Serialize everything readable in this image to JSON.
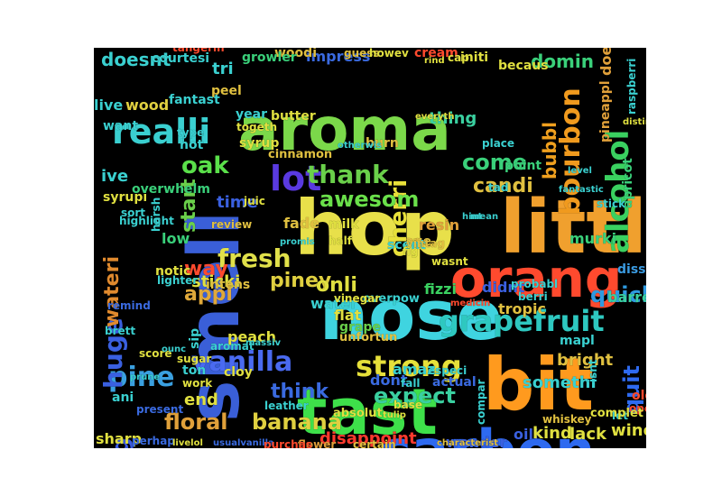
{
  "image": {
    "kind": "word cloud",
    "background": "#000000",
    "page_background": "#ffffff"
  },
  "words": [
    {
      "text": "aroma",
      "color": "#7bd84a"
    },
    {
      "text": "hop",
      "color": "#e8e04a"
    },
    {
      "text": "littl",
      "color": "#f0a02e"
    },
    {
      "text": "nose",
      "color": "#3fd4e0"
    },
    {
      "text": "smell",
      "color": "#3a5fd8"
    },
    {
      "text": "tast",
      "color": "#3ee04a"
    },
    {
      "text": "orang",
      "color": "#ff4a2e"
    },
    {
      "text": "bit",
      "color": "#ff9a1e"
    },
    {
      "text": "carbon",
      "color": "#2e6af0"
    },
    {
      "text": "grapefruit",
      "color": "#2ec8c0"
    },
    {
      "text": "realli",
      "color": "#3acfd0"
    },
    {
      "text": "alcohol",
      "color": "#3ad060"
    },
    {
      "text": "bourbon",
      "color": "#f09a1e"
    },
    {
      "text": "vanilla",
      "color": "#4a6af0"
    },
    {
      "text": "strong",
      "color": "#e6e03a"
    },
    {
      "text": "lot",
      "color": "#5a3ae0"
    },
    {
      "text": "thank",
      "color": "#6ad04a"
    },
    {
      "text": "cherri",
      "color": "#e8e03a"
    },
    {
      "text": "fresh",
      "color": "#e0e04a"
    },
    {
      "text": "oak",
      "color": "#5ae04a"
    },
    {
      "text": "come",
      "color": "#3ad07a"
    },
    {
      "text": "bubbl",
      "color": "#f0a01e"
    },
    {
      "text": "candi",
      "color": "#e0c040"
    },
    {
      "text": "quick",
      "color": "#2e9ae0"
    },
    {
      "text": "pine",
      "color": "#3aa0e0"
    },
    {
      "text": "floral",
      "color": "#e0a03a"
    },
    {
      "text": "banana",
      "color": "#e0d040"
    },
    {
      "text": "expect",
      "color": "#3ad0a0"
    },
    {
      "text": "huge",
      "color": "#3a60e0"
    },
    {
      "text": "big",
      "color": "#3a5ae0"
    },
    {
      "text": "wateri",
      "color": "#e08a2e"
    },
    {
      "text": "awesom",
      "color": "#6ae04a"
    },
    {
      "text": "think",
      "color": "#3a6ae0"
    },
    {
      "text": "appl",
      "color": "#e0a83a"
    },
    {
      "text": "way",
      "color": "#ff4a2e"
    },
    {
      "text": "piney",
      "color": "#e0d040"
    },
    {
      "text": "onli",
      "color": "#e0e040"
    },
    {
      "text": "time",
      "color": "#3a60e0"
    },
    {
      "text": "start",
      "color": "#6ad04a"
    },
    {
      "text": "sticki",
      "color": "#e0e040"
    },
    {
      "text": "doesnt",
      "color": "#3ad0d0"
    },
    {
      "text": "impress",
      "color": "#3a6ae0"
    },
    {
      "text": "domin",
      "color": "#3ad07a"
    },
    {
      "text": "initi",
      "color": "#e0e040"
    },
    {
      "text": "quit",
      "color": "#2e6af0"
    },
    {
      "text": "end",
      "color": "#e0e040"
    },
    {
      "text": "dont",
      "color": "#3a6ae0"
    },
    {
      "text": "somethi",
      "color": "#3ad0d0"
    },
    {
      "text": "bright",
      "color": "#e0c040"
    },
    {
      "text": "wonder",
      "color": "#3a60e0"
    },
    {
      "text": "oili",
      "color": "#3a60e0"
    },
    {
      "text": "kind",
      "color": "#e0e040"
    },
    {
      "text": "lack",
      "color": "#e0e040"
    },
    {
      "text": "wine",
      "color": "#e0e040"
    },
    {
      "text": "disappoint",
      "color": "#ff3a2e"
    },
    {
      "text": "sharp",
      "color": "#e0e040"
    },
    {
      "text": "ani",
      "color": "#3ad0d0"
    },
    {
      "text": "tri",
      "color": "#3ad0d0"
    },
    {
      "text": "wood",
      "color": "#e0d040"
    },
    {
      "text": "live",
      "color": "#3ad0d0"
    },
    {
      "text": "resin",
      "color": "#e0a03a"
    },
    {
      "text": "age",
      "color": "#e0c040"
    },
    {
      "text": "fade",
      "color": "#e0c040"
    },
    {
      "text": "milk",
      "color": "#e0e040"
    },
    {
      "text": "murki",
      "color": "#3ad07a"
    },
    {
      "text": "fizzi",
      "color": "#3ad060"
    },
    {
      "text": "didnt",
      "color": "#3a60e0"
    },
    {
      "text": "tropic",
      "color": "#e0c040"
    },
    {
      "text": "dissip",
      "color": "#3a9ae0"
    },
    {
      "text": "barrel",
      "color": "#3ad0a0"
    },
    {
      "text": "apricot",
      "color": "#3ad07a"
    },
    {
      "text": "pineappl",
      "color": "#e0a03a"
    },
    {
      "text": "water",
      "color": "#3ad0d0"
    },
    {
      "text": "flat",
      "color": "#e0e040"
    },
    {
      "text": "grape",
      "color": "#6ad04a"
    },
    {
      "text": "peach",
      "color": "#e0e040"
    },
    {
      "text": "intens",
      "color": "#e0c040"
    },
    {
      "text": "low",
      "color": "#3ad07a"
    },
    {
      "text": "syrupi",
      "color": "#e0e040"
    },
    {
      "text": "ive",
      "color": "#3ad0d0"
    },
    {
      "text": "sort",
      "color": "#3ad0d0"
    },
    {
      "text": "overwhelm",
      "color": "#3ad07a"
    },
    {
      "text": "cinnamon",
      "color": "#e0c040"
    },
    {
      "text": "review",
      "color": "#e0c040"
    },
    {
      "text": "juic",
      "color": "#e0e040"
    },
    {
      "text": "notic",
      "color": "#e0e040"
    },
    {
      "text": "lighter",
      "color": "#3ad0d0"
    },
    {
      "text": "remind",
      "color": "#3a6ae0"
    },
    {
      "text": "brett",
      "color": "#3ad0d0"
    },
    {
      "text": "score",
      "color": "#e0e040"
    },
    {
      "text": "ton",
      "color": "#3ad0d0"
    },
    {
      "text": "work",
      "color": "#e0e040"
    },
    {
      "text": "present",
      "color": "#3a6ae0"
    },
    {
      "text": "absolut",
      "color": "#e0e040"
    },
    {
      "text": "flower",
      "color": "#e0a03a"
    },
    {
      "text": "certain",
      "color": "#e0c040"
    },
    {
      "text": "base",
      "color": "#e0e040"
    },
    {
      "text": "actual",
      "color": "#3a6ae0"
    },
    {
      "text": "old",
      "color": "#ff4a2e"
    },
    {
      "text": "open",
      "color": "#ff4a2e"
    },
    {
      "text": "mapl",
      "color": "#3ad0d0"
    },
    {
      "text": "let",
      "color": "#3ad0d0"
    },
    {
      "text": "thing",
      "color": "#3ad0a0"
    },
    {
      "text": "cream",
      "color": "#ff4a2e"
    },
    {
      "text": "becaus",
      "color": "#e0e040"
    },
    {
      "text": "woodi",
      "color": "#e0c040"
    },
    {
      "text": "growler",
      "color": "#3ad07a"
    },
    {
      "text": "courtesi",
      "color": "#3ad0d0"
    },
    {
      "text": "tangerin",
      "color": "#ff4a2e"
    },
    {
      "text": "peel",
      "color": "#e0c040"
    },
    {
      "text": "butter",
      "color": "#e0e040"
    },
    {
      "text": "year",
      "color": "#3ad0d0"
    },
    {
      "text": "fantast",
      "color": "#3ad0d0"
    },
    {
      "text": "want",
      "color": "#3ad0d0"
    },
    {
      "text": "type",
      "color": "#3ad0d0"
    },
    {
      "text": "hot",
      "color": "#3ad0d0"
    },
    {
      "text": "syrup",
      "color": "#e0e040"
    },
    {
      "text": "burn",
      "color": "#e0c040"
    },
    {
      "text": "place",
      "color": "#3ad0d0"
    },
    {
      "text": "point",
      "color": "#3ad07a"
    },
    {
      "text": "tad",
      "color": "#3ad0d0"
    },
    {
      "text": "stick",
      "color": "#3ad0d0"
    },
    {
      "text": "raspberri",
      "color": "#3ad0d0"
    },
    {
      "text": "distinct",
      "color": "#e0e040"
    },
    {
      "text": "doe",
      "color": "#e0a03a"
    },
    {
      "text": "highlight",
      "color": "#3ad0d0"
    },
    {
      "text": "harsh",
      "color": "#3ad0d0"
    },
    {
      "text": "scent",
      "color": "#3ad0d0"
    },
    {
      "text": "vintag",
      "color": "#e0c040"
    },
    {
      "text": "wasnt",
      "color": "#e0e040"
    },
    {
      "text": "fig",
      "color": "#e0e040"
    },
    {
      "text": "half",
      "color": "#e0e040"
    },
    {
      "text": "promis",
      "color": "#3ad0d0"
    },
    {
      "text": "overpow",
      "color": "#3ad0d0"
    },
    {
      "text": "probabl",
      "color": "#3ad0d0"
    },
    {
      "text": "berri",
      "color": "#3ad0d0"
    },
    {
      "text": "medicin",
      "color": "#ff4a2e"
    },
    {
      "text": "unfortun",
      "color": "#e0c040"
    },
    {
      "text": "vinegar",
      "color": "#e0e040"
    },
    {
      "text": "amaz",
      "color": "#3ad0d0"
    },
    {
      "text": "especi",
      "color": "#3ad0d0"
    },
    {
      "text": "fall",
      "color": "#3ad0d0"
    },
    {
      "text": "sip",
      "color": "#3ad0d0"
    },
    {
      "text": "cloy",
      "color": "#e0e040"
    },
    {
      "text": "leather",
      "color": "#3ad0d0"
    },
    {
      "text": "complet",
      "color": "#e0e040"
    },
    {
      "text": "whiskey",
      "color": "#e0c040"
    },
    {
      "text": "compar",
      "color": "#3ad0d0"
    },
    {
      "text": "characterist",
      "color": "#e0c040"
    },
    {
      "text": "perhap",
      "color": "#3a6ae0"
    },
    {
      "text": "livelol",
      "color": "#e0e040"
    },
    {
      "text": "usualvanilla",
      "color": "#3a6ae0"
    },
    {
      "text": "purchas",
      "color": "#ff4a2e"
    },
    {
      "text": "prune",
      "color": "#3ad0d0"
    },
    {
      "text": "sugar",
      "color": "#e0e040"
    },
    {
      "text": "aromat",
      "color": "#3ad0d0"
    },
    {
      "text": "guess",
      "color": "#e0c040"
    },
    {
      "text": "howev",
      "color": "#e0e040"
    },
    {
      "text": "cap",
      "color": "#e0e040"
    },
    {
      "text": "rind",
      "color": "#e0e040"
    },
    {
      "text": "everyth",
      "color": "#e0e040"
    },
    {
      "text": "togeth",
      "color": "#e0e040"
    },
    {
      "text": "otherwis",
      "color": "#3ad0d0"
    },
    {
      "text": "level",
      "color": "#3ad0d0"
    },
    {
      "text": "hint",
      "color": "#3ad0d0"
    },
    {
      "text": "tulip",
      "color": "#e0e040"
    },
    {
      "text": "ounc",
      "color": "#3ad0d0"
    },
    {
      "text": "massiv",
      "color": "#3ad0d0"
    },
    {
      "text": "fantastic",
      "color": "#3ad0d0"
    },
    {
      "text": "mean",
      "color": "#3ad0d0"
    },
    {
      "text": "isnt",
      "color": "#3ad0d0"
    }
  ]
}
